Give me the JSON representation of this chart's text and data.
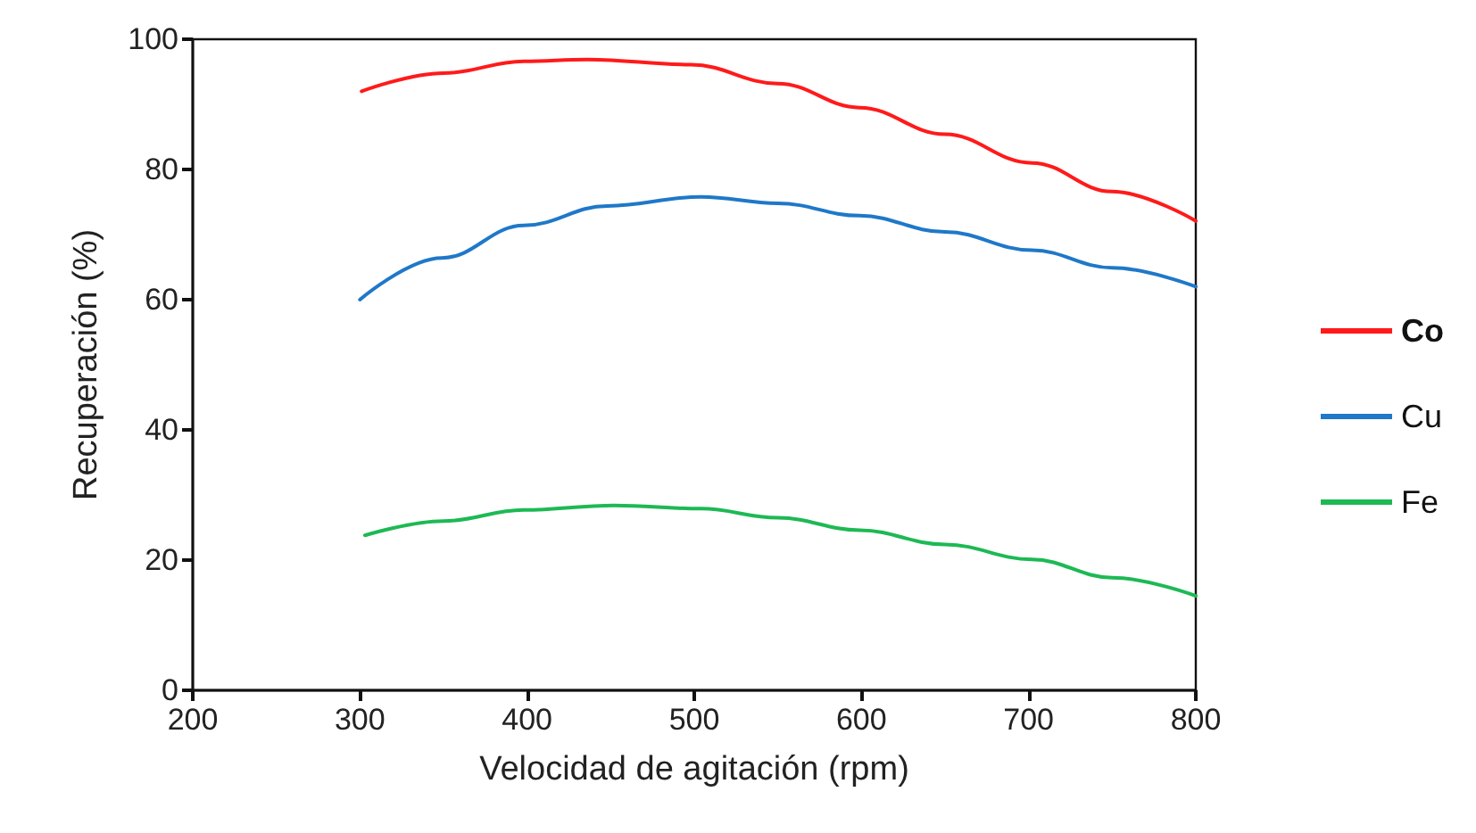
{
  "chart_data": {
    "type": "line",
    "xlabel": "Velocidad de agitación (rpm)",
    "ylabel": "Recuperación (%)",
    "xlim": [
      200,
      800
    ],
    "xticks": [
      200,
      300,
      400,
      500,
      600,
      700,
      800
    ],
    "ylim": [
      0,
      100
    ],
    "yticks": [
      0,
      20,
      40,
      60,
      80,
      100
    ],
    "grid": false,
    "legend": "right",
    "marker": "none",
    "line_style": "solid",
    "series": [
      {
        "name": "Co",
        "color": "#ff1a1a",
        "x": [
          301,
          350,
          398,
          436,
          498,
          550,
          599,
          650,
          702,
          750,
          800
        ],
        "values": [
          92.0,
          94.8,
          96.6,
          96.9,
          96.1,
          93.2,
          89.5,
          85.4,
          81.0,
          76.6,
          72.1
        ]
      },
      {
        "name": "Cu",
        "color": "#1f78c8",
        "x": [
          300,
          349,
          398,
          448,
          504,
          550,
          599,
          650,
          702,
          750,
          800
        ],
        "values": [
          60.0,
          66.4,
          71.4,
          74.4,
          75.8,
          74.8,
          72.9,
          70.4,
          67.6,
          64.9,
          62.0
        ]
      },
      {
        "name": "Fe",
        "color": "#1db954",
        "x": [
          303,
          350,
          398,
          452,
          504,
          550,
          599,
          650,
          702,
          750,
          800
        ],
        "values": [
          23.8,
          26.0,
          27.7,
          28.4,
          27.9,
          26.5,
          24.6,
          22.4,
          20.1,
          17.3,
          14.5
        ]
      }
    ]
  }
}
